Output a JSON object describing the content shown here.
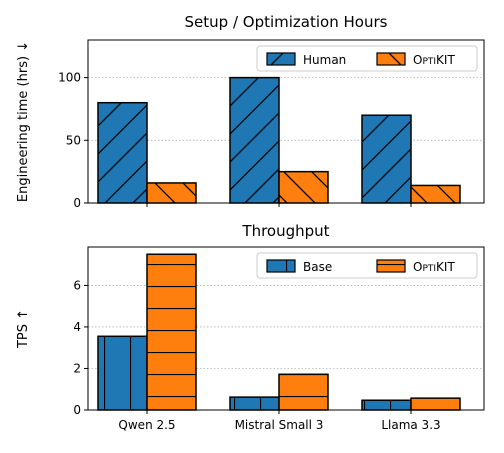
{
  "chart_data": [
    {
      "type": "bar",
      "title": "Setup / Optimization Hours",
      "ylabel": "Engineering time (hrs) ↓",
      "xlabel": "",
      "categories": [
        "Qwen 2.5",
        "Mistral Small 3",
        "Llama 3.3"
      ],
      "ylim": [
        0,
        130
      ],
      "yticks": [
        0,
        50,
        100
      ],
      "grid": "y",
      "legend_position": "top-right",
      "series": [
        {
          "name": "Human",
          "values": [
            80,
            100,
            70
          ],
          "color": "#1f77b4",
          "hatch": "diagonal"
        },
        {
          "name": "OptiKIT",
          "values": [
            16,
            25,
            14
          ],
          "color": "#ff7f0e",
          "hatch": "back-diagonal"
        }
      ]
    },
    {
      "type": "bar",
      "title": "Throughput",
      "ylabel": "TPS ↑",
      "xlabel": "",
      "categories": [
        "Qwen 2.5",
        "Mistral Small 3",
        "Llama 3.3"
      ],
      "ylim": [
        0,
        7.85
      ],
      "yticks": [
        0,
        2,
        4,
        6
      ],
      "grid": "y",
      "legend_position": "top-right",
      "series": [
        {
          "name": "Base",
          "values": [
            3.55,
            0.62,
            0.47
          ],
          "color": "#1f77b4",
          "hatch": "vertical"
        },
        {
          "name": "OptiKIT",
          "values": [
            7.5,
            1.72,
            0.57
          ],
          "color": "#ff7f0e",
          "hatch": "horizontal"
        }
      ]
    }
  ]
}
